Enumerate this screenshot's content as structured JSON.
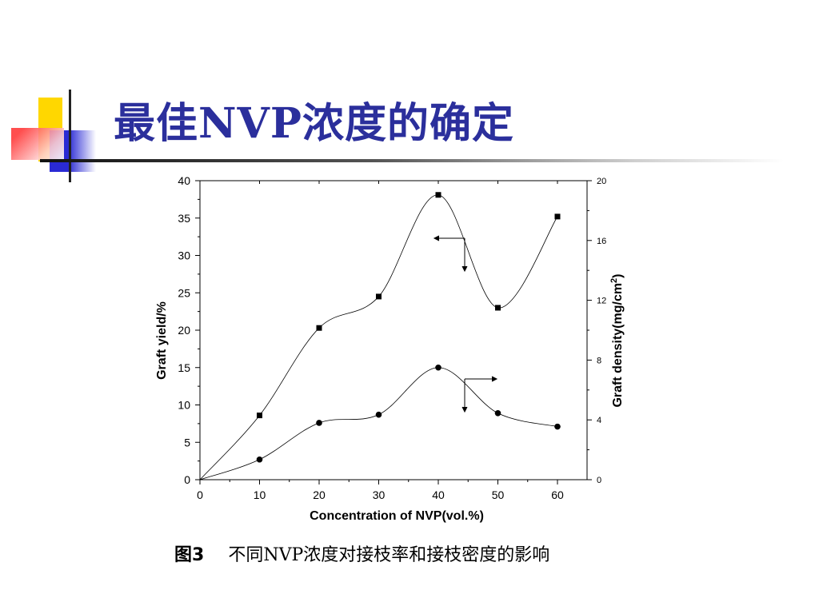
{
  "slide": {
    "title": "最佳NVP浓度的确定"
  },
  "caption": {
    "figure_label": "图3",
    "text": "不同NVP浓度对接枝率和接枝密度的影响"
  },
  "colors": {
    "title": "#2b2f9c",
    "deco_yellow": "#ffd700",
    "deco_blue": "#2a2ad4",
    "deco_red": "#ff5a5a"
  },
  "chart_data": {
    "type": "scatter",
    "title": "",
    "xlabel": "Concentration of NVP(vol.%)",
    "ylabel": "Graft yield/%",
    "y2label_main": "Graft density(mg/cm",
    "y2label_sup": "2",
    "y2label_end": ")",
    "xlim": [
      0,
      65
    ],
    "ylim": [
      0,
      40
    ],
    "y2lim": [
      0,
      20
    ],
    "x_ticks": [
      0,
      10,
      20,
      30,
      40,
      50,
      60
    ],
    "y_ticks": [
      0,
      5,
      10,
      15,
      20,
      25,
      30,
      35,
      40
    ],
    "y2_ticks": [
      0,
      4,
      8,
      12,
      16,
      20
    ],
    "x_tick_labels": [
      "0",
      "10",
      "20",
      "30",
      "40",
      "50",
      "60"
    ],
    "y_tick_labels": [
      "0",
      "5",
      "10",
      "15",
      "20",
      "25",
      "30",
      "35",
      "40"
    ],
    "y2_tick_labels": [
      "0",
      "4",
      "8",
      "12",
      "16",
      "20"
    ],
    "series": [
      {
        "marker": "square",
        "axis": "left",
        "x": [
          0,
          10,
          20,
          30,
          40,
          50,
          60
        ],
        "y": [
          0,
          8.6,
          20.3,
          24.5,
          38.1,
          23.0,
          35.2
        ]
      },
      {
        "marker": "circle",
        "axis": "right",
        "x": [
          0,
          10,
          20,
          30,
          40,
          50,
          60
        ],
        "y": [
          0,
          1.35,
          3.8,
          4.35,
          7.5,
          4.45,
          3.55
        ]
      }
    ],
    "grid": false,
    "legend": "none"
  }
}
